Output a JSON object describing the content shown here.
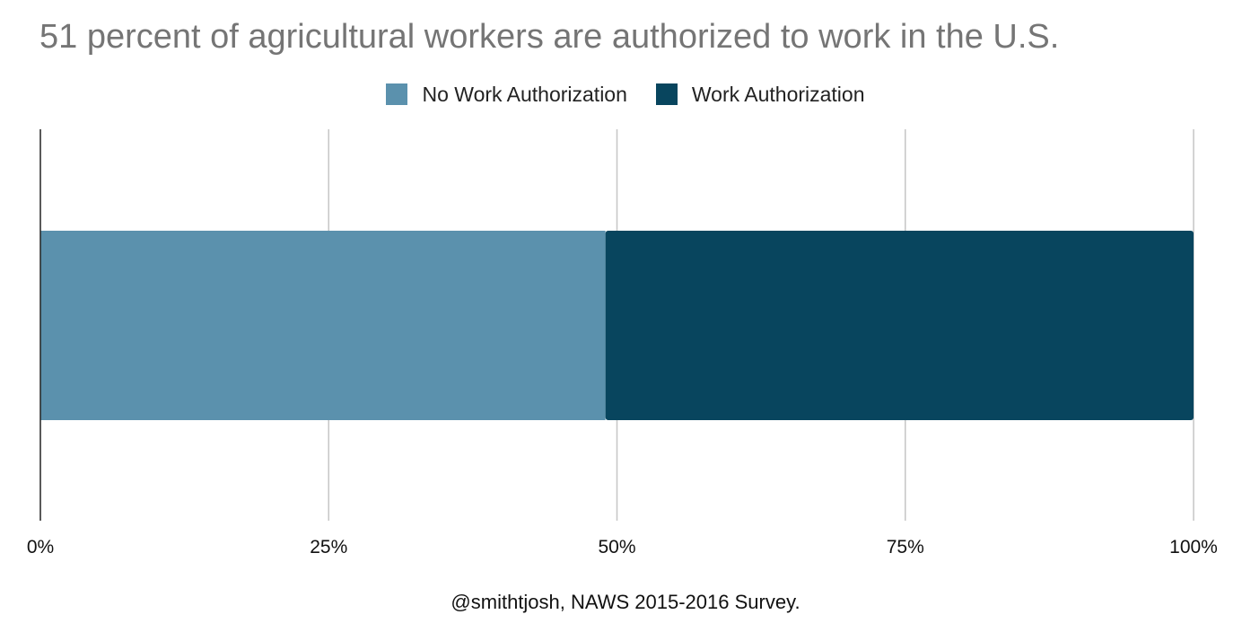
{
  "chart_data": {
    "type": "bar",
    "orientation": "horizontal",
    "stacking": "percent",
    "title": "51 percent of agricultural workers are authorized to work in the U.S.",
    "legend_position": "top",
    "categories": [
      ""
    ],
    "series": [
      {
        "name": "No Work Authorization",
        "values": [
          49
        ],
        "color": "#5b91ad"
      },
      {
        "name": "Work Authorization",
        "values": [
          51
        ],
        "color": "#08455e"
      }
    ],
    "xlim": [
      0,
      100
    ],
    "x_ticks": [
      0,
      25,
      50,
      75,
      100
    ],
    "x_tick_labels": [
      "0%",
      "25%",
      "50%",
      "75%",
      "100%"
    ],
    "grid": true,
    "footnote": "@smithtjosh, NAWS 2015-2016 Survey."
  }
}
